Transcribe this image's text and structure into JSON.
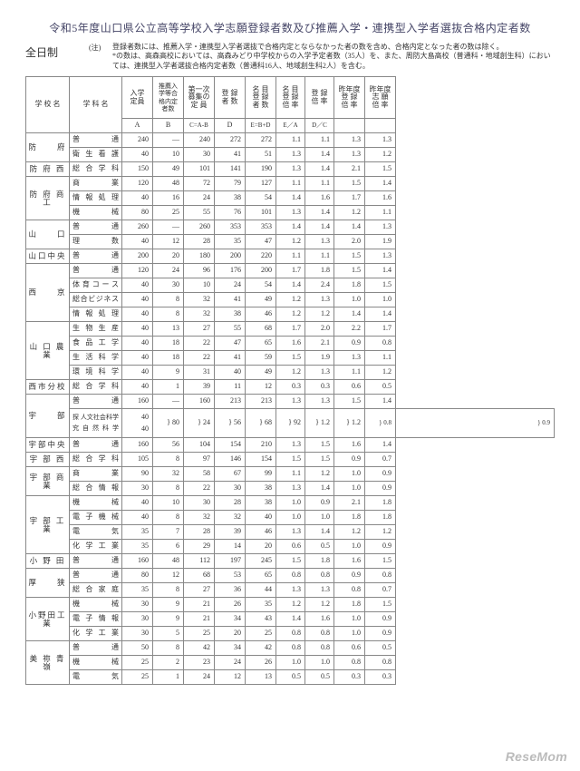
{
  "title": "令和5年度山口県公立高等学校入学志願登録者数及び推薦入学・連携型入学者選抜合格内定者数",
  "subheading": "全日制",
  "note_label": "(注)",
  "note_lines": [
    "登録者数には、推薦入学・連携型入学者選抜で合格内定とならなかった者の数を含め、合格内定となった者の数は除く。",
    "*の数は、高森高校においては、高森みどり中学校からの入学予定者数（35人）を、また、周防大島高校（普通科・地域創生科）においては、連携型入学者選抜合格内定者数（普通科16人、地域創生科2人）を含む。"
  ],
  "headers": {
    "school": "学 校 名",
    "dept": "学 科 名",
    "a": "入学\n定員",
    "b": "推薦入\n学等合\n格内定\n者数",
    "cap": "第一次\n募集の\n定 員",
    "d": "登 録\n者 数",
    "e": "名 目\n登 録\n者 数",
    "ea": "名 目\n登 録\n倍 率",
    "dc": "登 録\n倍 率",
    "py1": "昨年度\n登 録\n倍 率",
    "py2": "昨年度\n志 願\n倍 率",
    "row2": {
      "a": "A",
      "b": "B",
      "cap": "C=A-B",
      "d": "D",
      "e": "E=B+D",
      "ea": "E／A",
      "dc": "D／C"
    }
  },
  "groups": [
    {
      "school": "防　　府",
      "rows": [
        {
          "d": "普　　　通",
          "a": "240",
          "b": "—",
          "c": "240",
          "dd": "272",
          "e": "272",
          "ea": "1.1",
          "dc": "1.1",
          "p1": "1.3",
          "p2": "1.3"
        },
        {
          "d": "衛 生 看 護",
          "a": "40",
          "b": "10",
          "c": "30",
          "dd": "41",
          "e": "51",
          "ea": "1.3",
          "dc": "1.4",
          "p1": "1.3",
          "p2": "1.2"
        }
      ]
    },
    {
      "school": "防 府 西",
      "rows": [
        {
          "d": "総 合 学 科",
          "a": "150",
          "b": "49",
          "c": "101",
          "dd": "141",
          "e": "190",
          "ea": "1.3",
          "dc": "1.4",
          "p1": "2.1",
          "p2": "1.5"
        }
      ]
    },
    {
      "school": "防 府 商 工",
      "rows": [
        {
          "d": "商　　　業",
          "a": "120",
          "b": "48",
          "c": "72",
          "dd": "79",
          "e": "127",
          "ea": "1.1",
          "dc": "1.1",
          "p1": "1.5",
          "p2": "1.4"
        },
        {
          "d": "情 報 処 理",
          "a": "40",
          "b": "16",
          "c": "24",
          "dd": "38",
          "e": "54",
          "ea": "1.4",
          "dc": "1.6",
          "p1": "1.7",
          "p2": "1.6"
        },
        {
          "d": "機　　　械",
          "a": "80",
          "b": "25",
          "c": "55",
          "dd": "76",
          "e": "101",
          "ea": "1.3",
          "dc": "1.4",
          "p1": "1.2",
          "p2": "1.1"
        }
      ]
    },
    {
      "school": "山　　口",
      "rows": [
        {
          "d": "普　　　通",
          "a": "260",
          "b": "—",
          "c": "260",
          "dd": "353",
          "e": "353",
          "ea": "1.4",
          "dc": "1.4",
          "p1": "1.4",
          "p2": "1.3"
        },
        {
          "d": "理　　　数",
          "a": "40",
          "b": "12",
          "c": "28",
          "dd": "35",
          "e": "47",
          "ea": "1.2",
          "dc": "1.3",
          "p1": "2.0",
          "p2": "1.9"
        }
      ]
    },
    {
      "school": "山口中央",
      "rows": [
        {
          "d": "普　　　通",
          "a": "200",
          "b": "20",
          "c": "180",
          "dd": "200",
          "e": "220",
          "ea": "1.1",
          "dc": "1.1",
          "p1": "1.5",
          "p2": "1.3"
        }
      ]
    },
    {
      "school": "西　　京",
      "rows": [
        {
          "d": "普　　　通",
          "a": "120",
          "b": "24",
          "c": "96",
          "dd": "176",
          "e": "200",
          "ea": "1.7",
          "dc": "1.8",
          "p1": "1.5",
          "p2": "1.4"
        },
        {
          "d": "体育コース",
          "a": "40",
          "b": "30",
          "c": "10",
          "dd": "24",
          "e": "54",
          "ea": "1.4",
          "dc": "2.4",
          "p1": "1.8",
          "p2": "1.5"
        },
        {
          "d": "総合ビジネス",
          "a": "40",
          "b": "8",
          "c": "32",
          "dd": "41",
          "e": "49",
          "ea": "1.2",
          "dc": "1.3",
          "p1": "1.0",
          "p2": "1.0"
        },
        {
          "d": "情 報 処 理",
          "a": "40",
          "b": "8",
          "c": "32",
          "dd": "38",
          "e": "46",
          "ea": "1.2",
          "dc": "1.2",
          "p1": "1.4",
          "p2": "1.4"
        }
      ]
    },
    {
      "school": "山 口 農 業",
      "rows": [
        {
          "d": "生 物 生 産",
          "a": "40",
          "b": "13",
          "c": "27",
          "dd": "55",
          "e": "68",
          "ea": "1.7",
          "dc": "2.0",
          "p1": "2.2",
          "p2": "1.7"
        },
        {
          "d": "食 品 工 学",
          "a": "40",
          "b": "18",
          "c": "22",
          "dd": "47",
          "e": "65",
          "ea": "1.6",
          "dc": "2.1",
          "p1": "0.9",
          "p2": "0.8"
        },
        {
          "d": "生 活 科 学",
          "a": "40",
          "b": "18",
          "c": "22",
          "dd": "41",
          "e": "59",
          "ea": "1.5",
          "dc": "1.9",
          "p1": "1.3",
          "p2": "1.1"
        },
        {
          "d": "環 境 科 学",
          "a": "40",
          "b": "9",
          "c": "31",
          "dd": "40",
          "e": "49",
          "ea": "1.2",
          "dc": "1.3",
          "p1": "1.1",
          "p2": "1.2"
        }
      ]
    },
    {
      "school": "西市分校",
      "rows": [
        {
          "d": "総 合 学 科",
          "a": "40",
          "b": "1",
          "c": "39",
          "dd": "11",
          "e": "12",
          "ea": "0.3",
          "dc": "0.3",
          "p1": "0.6",
          "p2": "0.5"
        }
      ]
    },
    {
      "school": "宇　　部",
      "rows": [
        {
          "d": "普　　　通",
          "a": "160",
          "b": "—",
          "c": "160",
          "dd": "213",
          "e": "213",
          "ea": "1.3",
          "dc": "1.3",
          "p1": "1.5",
          "p2": "1.4"
        },
        {
          "d": "探 人文社会科学\n究 自 然 科 学",
          "a": "40\n40",
          "b": "} 80",
          "c": "} 24",
          "dd": "} 56",
          "e": "} 68",
          "ea": "} 92",
          "dc": "} 1.2",
          "p1": "} 1.2",
          "p2": "} 0.8\n} 0.9",
          "special": true
        }
      ]
    },
    {
      "school": "宇部中央",
      "rows": [
        {
          "d": "普　　　通",
          "a": "160",
          "b": "56",
          "c": "104",
          "dd": "154",
          "e": "210",
          "ea": "1.3",
          "dc": "1.5",
          "p1": "1.6",
          "p2": "1.4"
        }
      ]
    },
    {
      "school": "宇 部 西",
      "rows": [
        {
          "d": "総 合 学 科",
          "a": "105",
          "b": "8",
          "c": "97",
          "dd": "146",
          "e": "154",
          "ea": "1.5",
          "dc": "1.5",
          "p1": "0.9",
          "p2": "0.7"
        }
      ]
    },
    {
      "school": "宇 部 商 業",
      "rows": [
        {
          "d": "商　　　業",
          "a": "90",
          "b": "32",
          "c": "58",
          "dd": "67",
          "e": "99",
          "ea": "1.1",
          "dc": "1.2",
          "p1": "1.0",
          "p2": "0.9"
        },
        {
          "d": "総 合 情 報",
          "a": "30",
          "b": "8",
          "c": "22",
          "dd": "30",
          "e": "38",
          "ea": "1.3",
          "dc": "1.4",
          "p1": "1.0",
          "p2": "0.9"
        }
      ]
    },
    {
      "school": "宇 部 工 業",
      "rows": [
        {
          "d": "機　　　械",
          "a": "40",
          "b": "10",
          "c": "30",
          "dd": "28",
          "e": "38",
          "ea": "1.0",
          "dc": "0.9",
          "p1": "2.1",
          "p2": "1.8"
        },
        {
          "d": "電 子 機 械",
          "a": "40",
          "b": "8",
          "c": "32",
          "dd": "32",
          "e": "40",
          "ea": "1.0",
          "dc": "1.0",
          "p1": "1.8",
          "p2": "1.8"
        },
        {
          "d": "電　　　気",
          "a": "35",
          "b": "7",
          "c": "28",
          "dd": "39",
          "e": "46",
          "ea": "1.3",
          "dc": "1.4",
          "p1": "1.2",
          "p2": "1.2"
        },
        {
          "d": "化 学 工 業",
          "a": "35",
          "b": "6",
          "c": "29",
          "dd": "14",
          "e": "20",
          "ea": "0.6",
          "dc": "0.5",
          "p1": "1.0",
          "p2": "0.9"
        }
      ]
    },
    {
      "school": "小 野 田",
      "rows": [
        {
          "d": "普　　　通",
          "a": "160",
          "b": "48",
          "c": "112",
          "dd": "197",
          "e": "245",
          "ea": "1.5",
          "dc": "1.8",
          "p1": "1.6",
          "p2": "1.5"
        }
      ]
    },
    {
      "school": "厚　　狭",
      "rows": [
        {
          "d": "普　　　通",
          "a": "80",
          "b": "12",
          "c": "68",
          "dd": "53",
          "e": "65",
          "ea": "0.8",
          "dc": "0.8",
          "p1": "0.9",
          "p2": "0.8"
        },
        {
          "d": "総 合 家 庭",
          "a": "35",
          "b": "8",
          "c": "27",
          "dd": "36",
          "e": "44",
          "ea": "1.3",
          "dc": "1.3",
          "p1": "0.8",
          "p2": "0.7"
        }
      ]
    },
    {
      "school": "小野田工業",
      "rows": [
        {
          "d": "機　　　械",
          "a": "30",
          "b": "9",
          "c": "21",
          "dd": "26",
          "e": "35",
          "ea": "1.2",
          "dc": "1.2",
          "p1": "1.8",
          "p2": "1.5"
        },
        {
          "d": "電 子 情 報",
          "a": "30",
          "b": "9",
          "c": "21",
          "dd": "34",
          "e": "43",
          "ea": "1.4",
          "dc": "1.6",
          "p1": "1.0",
          "p2": "0.9"
        },
        {
          "d": "化 学 工 業",
          "a": "30",
          "b": "5",
          "c": "25",
          "dd": "20",
          "e": "25",
          "ea": "0.8",
          "dc": "0.8",
          "p1": "1.0",
          "p2": "0.9"
        }
      ]
    },
    {
      "school": "美 祢 青 嶺",
      "rows": [
        {
          "d": "普　　　通",
          "a": "50",
          "b": "8",
          "c": "42",
          "dd": "34",
          "e": "42",
          "ea": "0.8",
          "dc": "0.8",
          "p1": "0.6",
          "p2": "0.5"
        },
        {
          "d": "機　　　械",
          "a": "25",
          "b": "2",
          "c": "23",
          "dd": "24",
          "e": "26",
          "ea": "1.0",
          "dc": "1.0",
          "p1": "0.8",
          "p2": "0.8"
        },
        {
          "d": "電　　　気",
          "a": "25",
          "b": "1",
          "c": "24",
          "dd": "12",
          "e": "13",
          "ea": "0.5",
          "dc": "0.5",
          "p1": "0.3",
          "p2": "0.3"
        }
      ]
    }
  ],
  "logo": "ReseMom"
}
